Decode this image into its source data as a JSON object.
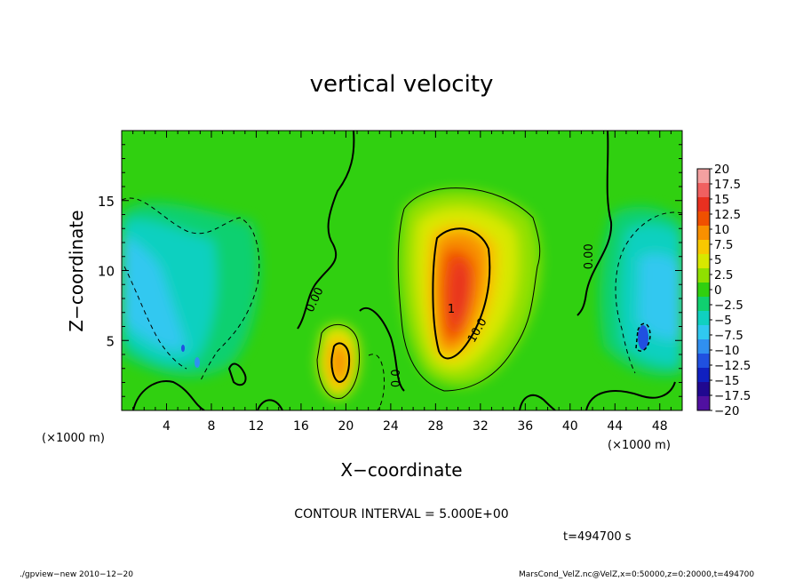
{
  "chart_data": {
    "type": "heatmap",
    "title": "vertical velocity",
    "xlabel": "X−coordinate",
    "ylabel": "Z−coordinate",
    "x_unit_label": "(×1000 m)",
    "y_unit_label": "(×1000 m)",
    "xlim": [
      0,
      50
    ],
    "ylim": [
      0,
      20
    ],
    "x_ticks": [
      "4",
      "8",
      "12",
      "16",
      "20",
      "24",
      "28",
      "32",
      "36",
      "40",
      "44",
      "48"
    ],
    "x_tick_values": [
      4,
      8,
      12,
      16,
      20,
      24,
      28,
      32,
      36,
      40,
      44,
      48
    ],
    "y_ticks": [
      "5",
      "10",
      "15"
    ],
    "y_tick_values": [
      5,
      10,
      15
    ],
    "contour_interval_label": "CONTOUR INTERVAL = 5.000E+00",
    "time_label": "t=494700 s",
    "contour_labels": [
      {
        "text": "0.00",
        "x": 17.5,
        "z": 7.8,
        "angle": -65
      },
      {
        "text": "10.0",
        "x": 32.0,
        "z": 5.6,
        "angle": -60
      },
      {
        "text": "0.00",
        "x": 42.0,
        "z": 11.0,
        "angle": -90
      },
      {
        "text": "0.0",
        "x": 24.8,
        "z": 2.3,
        "angle": -90
      },
      {
        "text": "1",
        "x": 29.4,
        "z": 7.0,
        "angle": 0
      }
    ],
    "colorbar": {
      "labels": [
        "20",
        "17.5",
        "15",
        "12.5",
        "10",
        "7.5",
        "5",
        "2.5",
        "0",
        "−2.5",
        "−5",
        "−7.5",
        "−10",
        "−12.5",
        "−15",
        "−17.5",
        "−20"
      ],
      "values": [
        20,
        17.5,
        15,
        12.5,
        10,
        7.5,
        5,
        2.5,
        0,
        -2.5,
        -5,
        -7.5,
        -10,
        -12.5,
        -15,
        -17.5,
        -20
      ],
      "colors": [
        "#f4a0a0",
        "#f06060",
        "#e83020",
        "#f05000",
        "#f89000",
        "#f8c800",
        "#d8e800",
        "#90e000",
        "#30d010",
        "#10d070",
        "#10d0c0",
        "#30c8f0",
        "#3090f0",
        "#2050e0",
        "#1020c0",
        "#200890",
        "#5010a0"
      ]
    },
    "features": [
      {
        "type": "updraft",
        "x": 30.5,
        "z": 9.5,
        "peak": 15
      },
      {
        "type": "updraft",
        "x": 19.5,
        "z": 4.0,
        "peak": 10
      },
      {
        "type": "downdraft",
        "x": 6.0,
        "z": 6.0,
        "peak": -7.5
      },
      {
        "type": "downdraft",
        "x": 46.5,
        "z": 7.0,
        "peak": -10
      }
    ]
  },
  "footer": {
    "left": "./gpview−new   2010−12−20",
    "right": "MarsCond_VelZ.nc@VelZ,x=0:50000,z=0:20000,t=494700"
  }
}
